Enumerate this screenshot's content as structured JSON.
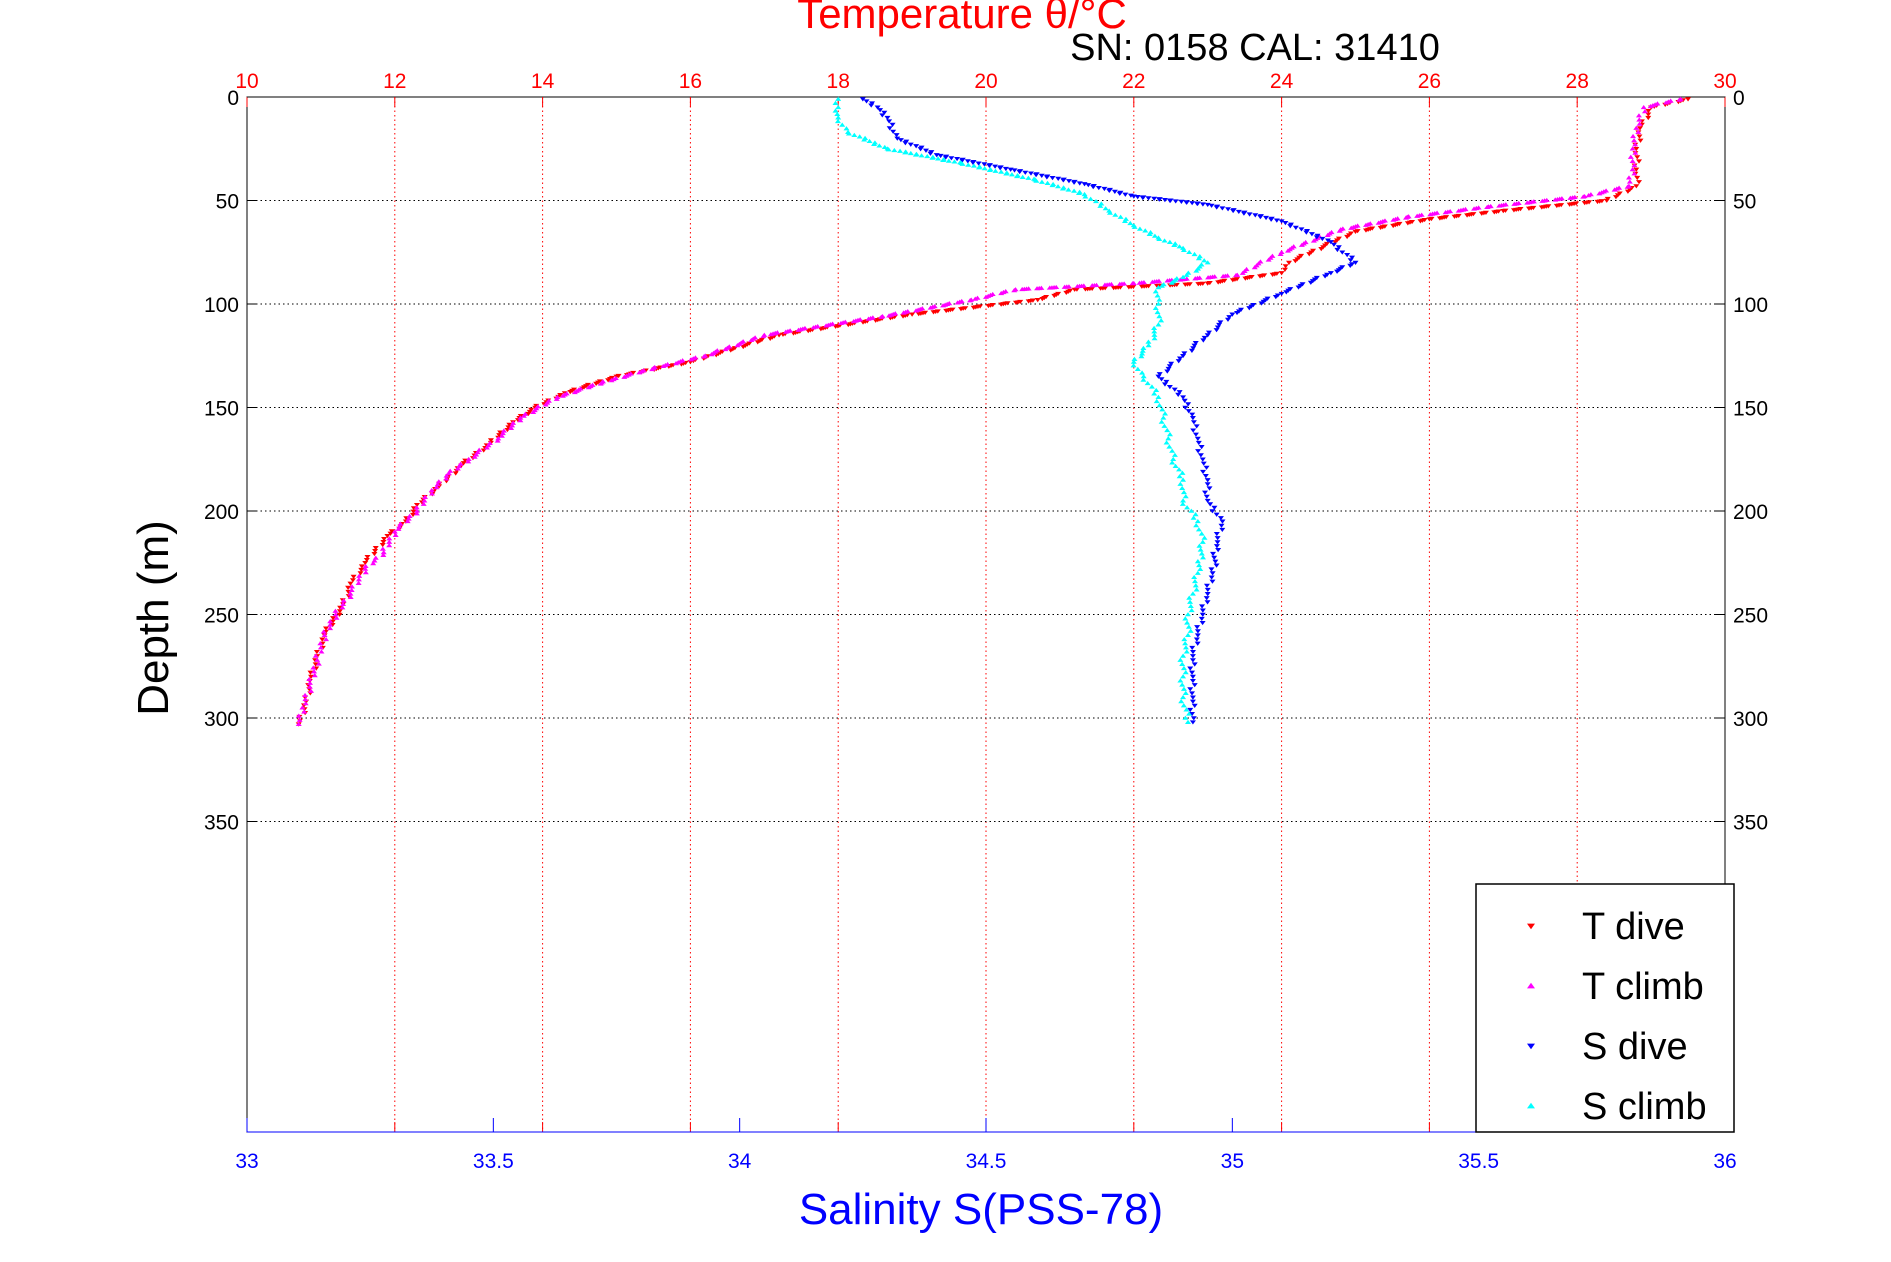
{
  "chart_data": {
    "type": "scatter",
    "title": "Temperature θ/°C",
    "subtitle": "SN: 0158  CAL: 31410",
    "ylabel": "Depth (m)",
    "xlabel": "Salinity S(PSS-78)",
    "ylim": [
      0,
      500
    ],
    "y_reversed": true,
    "y_ticks": [
      0,
      50,
      100,
      150,
      200,
      250,
      300,
      350
    ],
    "temperature_axis": {
      "label": "Temperature θ/°C",
      "range": [
        10,
        30
      ],
      "ticks": [
        10,
        12,
        14,
        16,
        18,
        20,
        22,
        24,
        26,
        28,
        30
      ],
      "color": "#ff0000"
    },
    "salinity_axis": {
      "label": "Salinity S(PSS-78)",
      "range": [
        33,
        36
      ],
      "ticks": [
        33,
        33.5,
        34,
        34.5,
        35,
        35.5,
        36
      ],
      "color": "#0000ff"
    },
    "grid": true,
    "legend_position": "bottom-right",
    "series": [
      {
        "name": "T dive",
        "axis": "temperature",
        "color": "#ff0000",
        "marker": "triangle-down",
        "points": [
          [
            29.5,
            1
          ],
          [
            29.0,
            5
          ],
          [
            28.85,
            15
          ],
          [
            28.8,
            25
          ],
          [
            28.8,
            35
          ],
          [
            28.8,
            43
          ],
          [
            28.4,
            50
          ],
          [
            27.0,
            55
          ],
          [
            26.0,
            59
          ],
          [
            25.0,
            65
          ],
          [
            24.1,
            80
          ],
          [
            24.0,
            85
          ],
          [
            23.0,
            90
          ],
          [
            21.2,
            93
          ],
          [
            20.7,
            98
          ],
          [
            19.0,
            105
          ],
          [
            17.2,
            115
          ],
          [
            16.0,
            128
          ],
          [
            15.0,
            135
          ],
          [
            14.3,
            143
          ],
          [
            13.9,
            150
          ],
          [
            13.6,
            157
          ],
          [
            13.3,
            167
          ],
          [
            12.9,
            178
          ],
          [
            12.6,
            188
          ],
          [
            12.3,
            197
          ],
          [
            12.15,
            205
          ],
          [
            11.9,
            212
          ],
          [
            11.6,
            225
          ],
          [
            11.4,
            235
          ],
          [
            11.3,
            245
          ],
          [
            11.05,
            260
          ],
          [
            10.95,
            270
          ],
          [
            10.85,
            282
          ],
          [
            10.8,
            292
          ],
          [
            10.7,
            303
          ]
        ]
      },
      {
        "name": "T climb",
        "axis": "temperature",
        "color": "#ff00ff",
        "marker": "triangle-up",
        "points": [
          [
            29.4,
            1
          ],
          [
            28.9,
            5
          ],
          [
            28.8,
            15
          ],
          [
            28.75,
            25
          ],
          [
            28.75,
            35
          ],
          [
            28.7,
            43
          ],
          [
            28.1,
            48
          ],
          [
            26.8,
            53
          ],
          [
            25.7,
            58
          ],
          [
            24.8,
            64
          ],
          [
            24.0,
            75
          ],
          [
            23.4,
            86
          ],
          [
            22.0,
            90
          ],
          [
            20.4,
            93
          ],
          [
            19.8,
            98
          ],
          [
            18.6,
            106
          ],
          [
            17.0,
            115
          ],
          [
            16.2,
            125
          ],
          [
            15.5,
            131
          ],
          [
            14.8,
            138
          ],
          [
            14.2,
            145
          ],
          [
            13.7,
            155
          ],
          [
            13.4,
            165
          ],
          [
            13.0,
            175
          ],
          [
            12.7,
            183
          ],
          [
            12.5,
            190
          ],
          [
            12.3,
            200
          ],
          [
            12.0,
            210
          ],
          [
            11.85,
            220
          ],
          [
            11.6,
            228
          ],
          [
            11.4,
            240
          ],
          [
            11.2,
            250
          ],
          [
            11.05,
            260
          ],
          [
            10.95,
            272
          ],
          [
            10.85,
            285
          ],
          [
            10.75,
            295
          ],
          [
            10.7,
            303
          ]
        ]
      },
      {
        "name": "S dive",
        "axis": "salinity",
        "color": "#0000ff",
        "marker": "triangle-down",
        "points": [
          [
            34.25,
            1
          ],
          [
            34.28,
            5
          ],
          [
            34.3,
            10
          ],
          [
            34.32,
            20
          ],
          [
            34.4,
            28
          ],
          [
            34.55,
            35
          ],
          [
            34.7,
            42
          ],
          [
            34.8,
            48
          ],
          [
            34.95,
            52
          ],
          [
            35.1,
            60
          ],
          [
            35.2,
            70
          ],
          [
            35.25,
            80
          ],
          [
            35.2,
            85
          ],
          [
            35.1,
            95
          ],
          [
            35.0,
            105
          ],
          [
            34.95,
            115
          ],
          [
            34.9,
            125
          ],
          [
            34.85,
            135
          ],
          [
            34.9,
            145
          ],
          [
            34.92,
            155
          ],
          [
            34.93,
            165
          ],
          [
            34.94,
            175
          ],
          [
            34.95,
            185
          ],
          [
            34.95,
            195
          ],
          [
            34.98,
            205
          ],
          [
            34.97,
            215
          ],
          [
            34.96,
            230
          ],
          [
            34.95,
            240
          ],
          [
            34.94,
            250
          ],
          [
            34.93,
            260
          ],
          [
            34.92,
            270
          ],
          [
            34.92,
            280
          ],
          [
            34.92,
            290
          ],
          [
            34.92,
            302
          ]
        ]
      },
      {
        "name": "S climb",
        "axis": "salinity",
        "color": "#00ffff",
        "marker": "triangle-up",
        "points": [
          [
            34.2,
            1
          ],
          [
            34.2,
            5
          ],
          [
            34.2,
            10
          ],
          [
            34.22,
            17
          ],
          [
            34.3,
            25
          ],
          [
            34.45,
            32
          ],
          [
            34.6,
            40
          ],
          [
            34.7,
            47
          ],
          [
            34.75,
            55
          ],
          [
            34.8,
            62
          ],
          [
            34.85,
            68
          ],
          [
            34.9,
            73
          ],
          [
            34.95,
            80
          ],
          [
            34.9,
            87
          ],
          [
            34.85,
            92
          ],
          [
            34.85,
            100
          ],
          [
            34.85,
            110
          ],
          [
            34.83,
            120
          ],
          [
            34.8,
            128
          ],
          [
            34.82,
            135
          ],
          [
            34.85,
            145
          ],
          [
            34.86,
            155
          ],
          [
            34.87,
            165
          ],
          [
            34.88,
            175
          ],
          [
            34.9,
            185
          ],
          [
            34.9,
            195
          ],
          [
            34.93,
            205
          ],
          [
            34.94,
            215
          ],
          [
            34.93,
            230
          ],
          [
            34.92,
            240
          ],
          [
            34.91,
            250
          ],
          [
            34.91,
            260
          ],
          [
            34.9,
            270
          ],
          [
            34.9,
            280
          ],
          [
            34.9,
            290
          ],
          [
            34.91,
            302
          ]
        ]
      }
    ]
  }
}
